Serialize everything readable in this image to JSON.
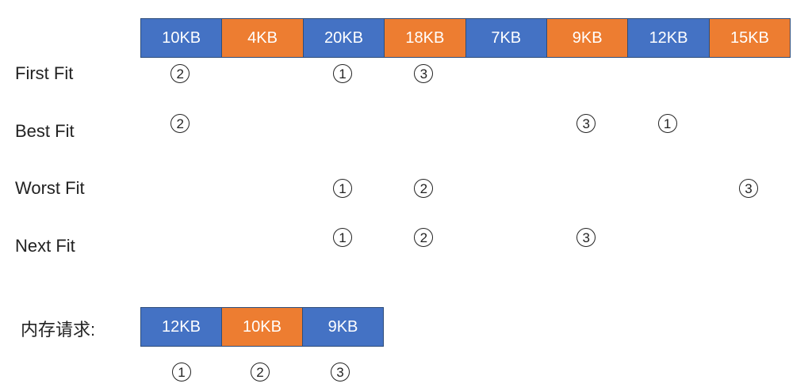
{
  "memory_blocks": [
    {
      "label": "10KB",
      "color": "blue"
    },
    {
      "label": "4KB",
      "color": "orange"
    },
    {
      "label": "20KB",
      "color": "blue"
    },
    {
      "label": "18KB",
      "color": "orange"
    },
    {
      "label": "7KB",
      "color": "blue"
    },
    {
      "label": "9KB",
      "color": "orange"
    },
    {
      "label": "12KB",
      "color": "blue"
    },
    {
      "label": "15KB",
      "color": "orange"
    }
  ],
  "strategies": [
    {
      "name": "First Fit",
      "assignments": [
        {
          "block": 0,
          "request": "2"
        },
        {
          "block": 2,
          "request": "1"
        },
        {
          "block": 3,
          "request": "3"
        }
      ]
    },
    {
      "name": "Best Fit",
      "assignments": [
        {
          "block": 0,
          "request": "2"
        },
        {
          "block": 5,
          "request": "3"
        },
        {
          "block": 6,
          "request": "1"
        }
      ]
    },
    {
      "name": "Worst Fit",
      "assignments": [
        {
          "block": 2,
          "request": "1"
        },
        {
          "block": 3,
          "request": "2"
        },
        {
          "block": 7,
          "request": "3"
        }
      ]
    },
    {
      "name": "Next Fit",
      "assignments": [
        {
          "block": 2,
          "request": "1"
        },
        {
          "block": 3,
          "request": "2"
        },
        {
          "block": 5,
          "request": "3"
        }
      ]
    }
  ],
  "requests_label": "内存请求:",
  "requests": [
    {
      "label": "12KB",
      "color": "blue",
      "number": "1"
    },
    {
      "label": "10KB",
      "color": "orange",
      "number": "2"
    },
    {
      "label": "9KB",
      "color": "blue",
      "number": "3"
    }
  ],
  "colors": {
    "blue": "#4472c4",
    "orange": "#ed7d31",
    "border": "#2e4d7a"
  }
}
